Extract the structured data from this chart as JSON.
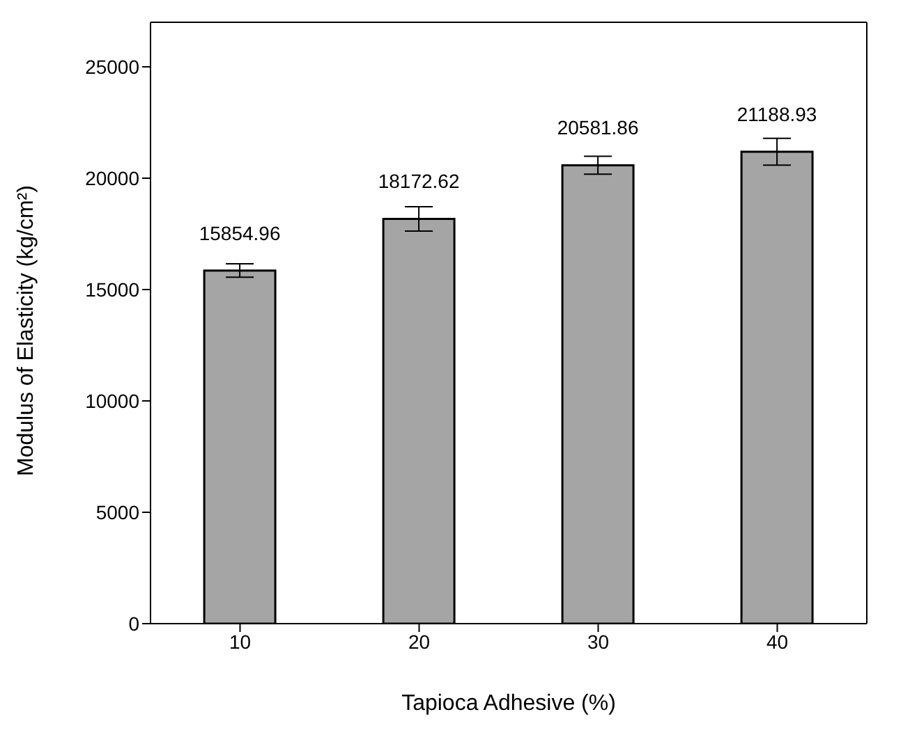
{
  "chart_data": {
    "type": "bar",
    "xlabel": "Tapioca Adhesive (%)",
    "ylabel": "Modulus of Elasticity (kg/cm²)",
    "categories": [
      "10",
      "20",
      "30",
      "40"
    ],
    "values": [
      15854.96,
      18172.62,
      20581.86,
      21188.93
    ],
    "errors": [
      300,
      550,
      400,
      600
    ],
    "color": "#a5a5a5",
    "ylim": [
      0,
      27000
    ],
    "yticks": [
      0,
      5000,
      10000,
      15000,
      20000,
      25000
    ],
    "data_labels": true,
    "grid": false,
    "legend": false
  }
}
